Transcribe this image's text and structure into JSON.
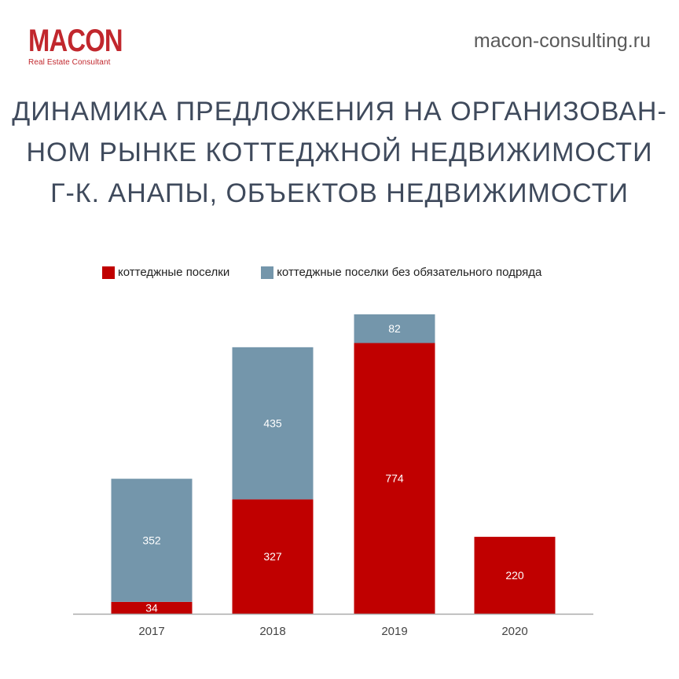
{
  "brand": {
    "logo_text": "MACON",
    "logo_subtitle": "Real Estate Consultant",
    "website": "macon-consulting.ru"
  },
  "header": {
    "title_lines": [
      "ДИНАМИКА ПРЕДЛОЖЕНИЯ НА ОРГАНИЗОВАН-",
      "НОМ РЫНКЕ КОТТЕДЖНОЙ НЕДВИЖИМОСТИ",
      "Г-К. АНАПЫ, ОБЪЕКТОВ НЕДВИЖИМОСТИ"
    ]
  },
  "colors": {
    "accent": "#c1272d",
    "series_red": "#c00000",
    "series_blue": "#7496ab",
    "title": "#3f4a5c"
  },
  "chart_data": {
    "type": "bar",
    "stacked": true,
    "categories": [
      "2017",
      "2018",
      "2019",
      "2020"
    ],
    "series": [
      {
        "name": "коттеджные поселки",
        "color": "#c00000",
        "values": [
          34,
          327,
          774,
          220
        ]
      },
      {
        "name": "коттеджные поселки без обязательного подряда",
        "color": "#7496ab",
        "values": [
          352,
          435,
          82,
          null
        ]
      }
    ],
    "legend_position": "top",
    "grid": false,
    "ylim": [
      0,
      856
    ]
  }
}
